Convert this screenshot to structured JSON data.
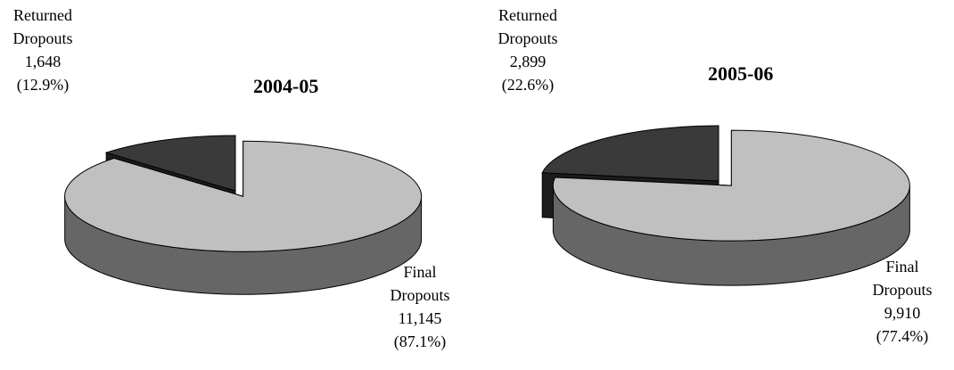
{
  "chart_data": [
    {
      "type": "pie",
      "title": "2004-05",
      "categories": [
        "Returned Dropouts",
        "Final Dropouts"
      ],
      "values": [
        1648,
        11145
      ],
      "value_labels": [
        "1,648",
        "11,145"
      ],
      "percent_labels": [
        "(12.9%)",
        "(87.1%)"
      ],
      "label_lines": [
        [
          "Returned",
          "Dropouts"
        ],
        [
          "Final",
          "Dropouts"
        ]
      ],
      "exploded": "Final Dropouts",
      "colors": [
        "#3a3a3a",
        "#c0c0c0"
      ],
      "side_colors": [
        "#1c1c1c",
        "#666666"
      ],
      "grid": false
    },
    {
      "type": "pie",
      "title": "2005-06",
      "categories": [
        "Returned Dropouts",
        "Final Dropouts"
      ],
      "values": [
        2899,
        9910
      ],
      "value_labels": [
        "2,899",
        "9,910"
      ],
      "percent_labels": [
        "(22.6%)",
        "(77.4%)"
      ],
      "label_lines": [
        [
          "Returned",
          "Dropouts"
        ],
        [
          "Final",
          "Dropouts"
        ]
      ],
      "exploded": "Final Dropouts",
      "colors": [
        "#3a3a3a",
        "#c0c0c0"
      ],
      "side_colors": [
        "#1c1c1c",
        "#666666"
      ],
      "grid": false
    }
  ]
}
